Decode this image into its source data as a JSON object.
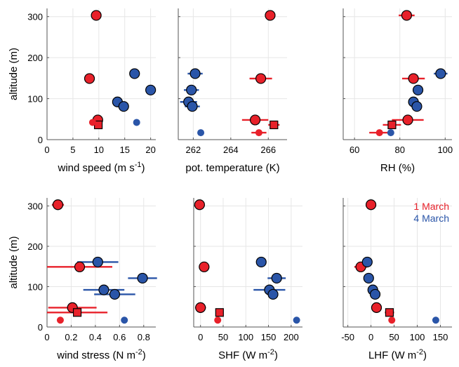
{
  "colors": {
    "red": "#e8212a",
    "blue": "#2a55a8",
    "grid": "#e6e6e6",
    "axis": "#555555"
  },
  "chart_data": [
    {
      "id": "wind-speed",
      "type": "scatter",
      "xlabel": "wind speed (m s",
      "xlabel_sup": "-1",
      "xlabel_end": ")",
      "ylabel": "altitude (m)",
      "xlim": [
        0,
        21
      ],
      "ylim": [
        0,
        320
      ],
      "xticks": [
        "0",
        "5",
        "10",
        "15",
        "20"
      ],
      "xtick_values": [
        0,
        5,
        10,
        15,
        20
      ],
      "yticks": [
        "0",
        "100",
        "200",
        "300"
      ],
      "ytick_values": [
        0,
        100,
        200,
        300
      ],
      "points": [
        {
          "x": 9.5,
          "y": 303,
          "xerr": 0,
          "color": "red",
          "marker": "circle",
          "style": "filled"
        },
        {
          "x": 8.2,
          "y": 149,
          "xerr": 0,
          "color": "red",
          "marker": "circle",
          "style": "filled"
        },
        {
          "x": 9.8,
          "y": 48,
          "xerr": 0,
          "color": "red",
          "marker": "circle",
          "style": "filled"
        },
        {
          "x": 9.9,
          "y": 36,
          "xerr": 0,
          "color": "red",
          "marker": "square",
          "style": "filled"
        },
        {
          "x": 8.8,
          "y": 42,
          "xerr": 0,
          "color": "red",
          "marker": "circle",
          "style": "small"
        },
        {
          "x": 16.9,
          "y": 161,
          "xerr": 0,
          "color": "blue",
          "marker": "circle",
          "style": "filled"
        },
        {
          "x": 20.0,
          "y": 121,
          "xerr": 0,
          "color": "blue",
          "marker": "circle",
          "style": "filled"
        },
        {
          "x": 13.6,
          "y": 92,
          "xerr": 0,
          "color": "blue",
          "marker": "circle",
          "style": "filled"
        },
        {
          "x": 14.8,
          "y": 81,
          "xerr": 0.5,
          "color": "blue",
          "marker": "circle",
          "style": "filled"
        },
        {
          "x": 17.3,
          "y": 42,
          "xerr": 0,
          "color": "blue",
          "marker": "circle",
          "style": "small"
        }
      ]
    },
    {
      "id": "pot-temperature",
      "type": "scatter",
      "xlabel": "pot. temperature (K)",
      "ylabel": "",
      "xlim": [
        261.2,
        267.0
      ],
      "ylim": [
        0,
        320
      ],
      "xticks": [
        "262",
        "264",
        "266"
      ],
      "xtick_values": [
        262,
        264,
        266
      ],
      "yticks": [],
      "ytick_values": [
        0,
        100,
        200,
        300
      ],
      "points": [
        {
          "x": 266.1,
          "y": 303,
          "xerr": 0.2,
          "color": "red",
          "marker": "circle",
          "style": "filled"
        },
        {
          "x": 265.6,
          "y": 149,
          "xerr": 0.6,
          "color": "red",
          "marker": "circle",
          "style": "filled"
        },
        {
          "x": 265.3,
          "y": 48,
          "xerr": 0.7,
          "color": "red",
          "marker": "circle",
          "style": "filled"
        },
        {
          "x": 266.3,
          "y": 36,
          "xerr": 0.3,
          "color": "red",
          "marker": "square",
          "style": "filled"
        },
        {
          "x": 265.5,
          "y": 17,
          "xerr": 0.4,
          "color": "red",
          "marker": "circle",
          "style": "small"
        },
        {
          "x": 262.1,
          "y": 161,
          "xerr": 0.4,
          "color": "blue",
          "marker": "circle",
          "style": "filled"
        },
        {
          "x": 261.9,
          "y": 121,
          "xerr": 0.4,
          "color": "blue",
          "marker": "circle",
          "style": "filled"
        },
        {
          "x": 261.75,
          "y": 92,
          "xerr": 0.45,
          "color": "blue",
          "marker": "circle",
          "style": "filled"
        },
        {
          "x": 261.95,
          "y": 81,
          "xerr": 0.4,
          "color": "blue",
          "marker": "circle",
          "style": "filled"
        },
        {
          "x": 262.4,
          "y": 17,
          "xerr": 0,
          "color": "blue",
          "marker": "circle",
          "style": "small"
        }
      ]
    },
    {
      "id": "rh",
      "type": "scatter",
      "xlabel": "RH (%)",
      "ylabel": "",
      "xlim": [
        55,
        103
      ],
      "ylim": [
        0,
        320
      ],
      "xticks": [
        "60",
        "80",
        "100"
      ],
      "xtick_values": [
        60,
        80,
        100
      ],
      "yticks": [],
      "ytick_values": [
        0,
        100,
        200,
        300
      ],
      "points": [
        {
          "x": 83,
          "y": 303,
          "xerr": 3.5,
          "color": "red",
          "marker": "circle",
          "style": "filled"
        },
        {
          "x": 86,
          "y": 149,
          "xerr": 5,
          "color": "red",
          "marker": "circle",
          "style": "filled"
        },
        {
          "x": 83.5,
          "y": 48,
          "xerr": 7,
          "color": "red",
          "marker": "circle",
          "style": "filled"
        },
        {
          "x": 76.5,
          "y": 36,
          "xerr": 4,
          "color": "red",
          "marker": "square",
          "style": "filled"
        },
        {
          "x": 71,
          "y": 17,
          "xerr": 4.5,
          "color": "red",
          "marker": "circle",
          "style": "small"
        },
        {
          "x": 98,
          "y": 161,
          "xerr": 3,
          "color": "blue",
          "marker": "circle",
          "style": "filled"
        },
        {
          "x": 88,
          "y": 121,
          "xerr": 0,
          "color": "blue",
          "marker": "circle",
          "style": "filled"
        },
        {
          "x": 86,
          "y": 92,
          "xerr": 1,
          "color": "blue",
          "marker": "circle",
          "style": "filled"
        },
        {
          "x": 87.5,
          "y": 81,
          "xerr": 0,
          "color": "blue",
          "marker": "circle",
          "style": "filled"
        },
        {
          "x": 76,
          "y": 17,
          "xerr": 0,
          "color": "blue",
          "marker": "circle",
          "style": "small"
        }
      ]
    },
    {
      "id": "wind-stress",
      "type": "scatter",
      "xlabel": "wind stress (N m",
      "xlabel_sup": "-2",
      "xlabel_end": ")",
      "ylabel": "altitude (m)",
      "xlim": [
        0,
        0.9
      ],
      "ylim": [
        0,
        320
      ],
      "xticks": [
        "0",
        "0.2",
        "0.4",
        "0.6",
        "0.8"
      ],
      "xtick_values": [
        0,
        0.2,
        0.4,
        0.6,
        0.8
      ],
      "yticks": [
        "0",
        "100",
        "200",
        "300"
      ],
      "ytick_values": [
        0,
        100,
        200,
        300
      ],
      "points": [
        {
          "x": 0.09,
          "y": 303,
          "xerr": 0.05,
          "color": "red",
          "marker": "circle",
          "style": "filled"
        },
        {
          "x": 0.27,
          "y": 149,
          "xerr": 0.27,
          "color": "red",
          "marker": "circle",
          "style": "filled"
        },
        {
          "x": 0.21,
          "y": 48,
          "xerr": 0.2,
          "color": "red",
          "marker": "circle",
          "style": "filled"
        },
        {
          "x": 0.25,
          "y": 36,
          "xerr": 0.25,
          "color": "red",
          "marker": "square",
          "style": "filled"
        },
        {
          "x": 0.11,
          "y": 17,
          "xerr": 0,
          "color": "red",
          "marker": "circle",
          "style": "small"
        },
        {
          "x": 0.42,
          "y": 161,
          "xerr": 0.17,
          "color": "blue",
          "marker": "circle",
          "style": "filled"
        },
        {
          "x": 0.79,
          "y": 121,
          "xerr": 0.12,
          "color": "blue",
          "marker": "circle",
          "style": "filled"
        },
        {
          "x": 0.47,
          "y": 92,
          "xerr": 0.17,
          "color": "blue",
          "marker": "circle",
          "style": "filled"
        },
        {
          "x": 0.56,
          "y": 81,
          "xerr": 0.17,
          "color": "blue",
          "marker": "circle",
          "style": "filled"
        },
        {
          "x": 0.64,
          "y": 17,
          "xerr": 0,
          "color": "blue",
          "marker": "circle",
          "style": "small"
        }
      ]
    },
    {
      "id": "shf",
      "type": "scatter",
      "xlabel": "SHF (W m",
      "xlabel_sup": "-2",
      "xlabel_end": ")",
      "ylabel": "",
      "xlim": [
        -15,
        225
      ],
      "ylim": [
        0,
        320
      ],
      "xticks": [
        "0",
        "50",
        "100",
        "150",
        "200"
      ],
      "xtick_values": [
        0,
        50,
        100,
        150,
        200
      ],
      "yticks": [],
      "ytick_values": [
        0,
        100,
        200,
        300
      ],
      "points": [
        {
          "x": -2,
          "y": 303,
          "xerr": 0,
          "color": "red",
          "marker": "circle",
          "style": "filled"
        },
        {
          "x": 8,
          "y": 149,
          "xerr": 7,
          "color": "red",
          "marker": "circle",
          "style": "filled"
        },
        {
          "x": 0,
          "y": 48,
          "xerr": 12,
          "color": "red",
          "marker": "circle",
          "style": "filled"
        },
        {
          "x": 42,
          "y": 36,
          "xerr": 9,
          "color": "red",
          "marker": "square",
          "style": "filled"
        },
        {
          "x": 38,
          "y": 17,
          "xerr": 0,
          "color": "red",
          "marker": "circle",
          "style": "small"
        },
        {
          "x": 134,
          "y": 161,
          "xerr": 5,
          "color": "blue",
          "marker": "circle",
          "style": "filled"
        },
        {
          "x": 168,
          "y": 121,
          "xerr": 20,
          "color": "blue",
          "marker": "circle",
          "style": "filled"
        },
        {
          "x": 152,
          "y": 92,
          "xerr": 35,
          "color": "blue",
          "marker": "circle",
          "style": "filled"
        },
        {
          "x": 160,
          "y": 81,
          "xerr": 8,
          "color": "blue",
          "marker": "circle",
          "style": "filled"
        },
        {
          "x": 212,
          "y": 17,
          "xerr": 0,
          "color": "blue",
          "marker": "circle",
          "style": "small"
        }
      ]
    },
    {
      "id": "lhf",
      "type": "scatter",
      "xlabel": "LHF (W m",
      "xlabel_sup": "-2",
      "xlabel_end": ")",
      "ylabel": "",
      "xlim": [
        -60,
        175
      ],
      "ylim": [
        0,
        320
      ],
      "xticks": [
        "-50",
        "0",
        "50",
        "100",
        "150"
      ],
      "xtick_values": [
        -50,
        0,
        50,
        100,
        150
      ],
      "yticks": [],
      "ytick_values": [
        0,
        100,
        200,
        300
      ],
      "points": [
        {
          "x": 0,
          "y": 303,
          "xerr": 0,
          "color": "red",
          "marker": "circle",
          "style": "filled"
        },
        {
          "x": -22,
          "y": 149,
          "xerr": 14,
          "color": "red",
          "marker": "circle",
          "style": "filled"
        },
        {
          "x": 12,
          "y": 48,
          "xerr": 8,
          "color": "red",
          "marker": "circle",
          "style": "filled"
        },
        {
          "x": 40,
          "y": 36,
          "xerr": 10,
          "color": "red",
          "marker": "square",
          "style": "filled"
        },
        {
          "x": 45,
          "y": 17,
          "xerr": 0,
          "color": "red",
          "marker": "circle",
          "style": "small"
        },
        {
          "x": -8,
          "y": 161,
          "xerr": 7,
          "color": "blue",
          "marker": "circle",
          "style": "filled"
        },
        {
          "x": -5,
          "y": 121,
          "xerr": 6,
          "color": "blue",
          "marker": "circle",
          "style": "filled"
        },
        {
          "x": 4,
          "y": 92,
          "xerr": 7,
          "color": "blue",
          "marker": "circle",
          "style": "filled"
        },
        {
          "x": 9,
          "y": 81,
          "xerr": 10,
          "color": "blue",
          "marker": "circle",
          "style": "filled"
        },
        {
          "x": 140,
          "y": 17,
          "xerr": 0,
          "color": "blue",
          "marker": "circle",
          "style": "small"
        }
      ]
    }
  ],
  "legend": {
    "placement": "top-right of LHF panel",
    "entries": [
      {
        "label": "1 March",
        "color": "red"
      },
      {
        "label": "4 March",
        "color": "blue"
      }
    ]
  }
}
